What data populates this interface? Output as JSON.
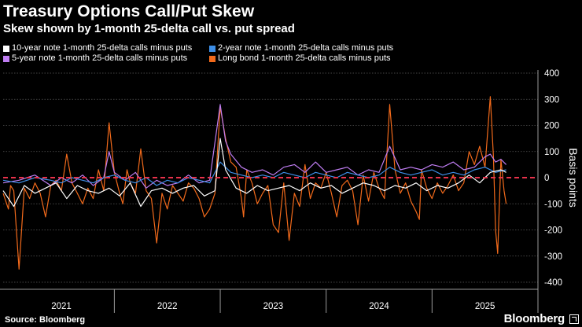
{
  "header": {
    "title": "Treasury Options Call/Put Skew",
    "subtitle": "Skew shown by 1-month 25-delta call vs. put spread"
  },
  "footer": {
    "source": "Source: Bloomberg",
    "brand": "Bloomberg"
  },
  "chart_data": {
    "type": "line",
    "title": "Treasury Options Call/Put Skew",
    "subtitle": "Skew shown by 1-month 25-delta call vs. put spread",
    "ylabel": "Basis points",
    "xlabel": "",
    "ylim": [
      -400,
      400
    ],
    "yticks": [
      400,
      300,
      200,
      100,
      0,
      -100,
      -200,
      -300,
      -400
    ],
    "xlim": [
      2020.45,
      2025.5
    ],
    "xticks": [
      {
        "label": "2021",
        "pos": 2021.0
      },
      {
        "label": "2022",
        "pos": 2022.0
      },
      {
        "label": "2023",
        "pos": 2023.0
      },
      {
        "label": "2024",
        "pos": 2024.0
      },
      {
        "label": "2025",
        "pos": 2025.0
      }
    ],
    "year_dividers": [
      2021.5,
      2022.5,
      2023.5,
      2024.5
    ],
    "zero_line": {
      "y": 0,
      "color": "#e8324b",
      "style": "dashed"
    },
    "legend": [
      {
        "label": "10-year note 1-month 25-delta calls minus puts",
        "color": "#ffffff"
      },
      {
        "label": "2-year note 1-month 25-delta calls minus puts",
        "color": "#3d8ee6"
      },
      {
        "label": "5-year note 1-month 25-delta calls minus puts",
        "color": "#bf7df2"
      },
      {
        "label": "Long bond 1-month 25-delta calls minus puts",
        "color": "#f26a1b"
      }
    ],
    "series": [
      {
        "name": "Long bond 1-month 25-delta calls minus puts",
        "color": "#f26a1b",
        "x": [
          2020.45,
          2020.5,
          2020.52,
          2020.55,
          2020.6,
          2020.65,
          2020.7,
          2020.75,
          2020.8,
          2020.85,
          2020.9,
          2020.95,
          2021.0,
          2021.05,
          2021.1,
          2021.15,
          2021.2,
          2021.25,
          2021.3,
          2021.35,
          2021.4,
          2021.45,
          2021.5,
          2021.55,
          2021.58,
          2021.62,
          2021.65,
          2021.7,
          2021.75,
          2021.8,
          2021.85,
          2021.9,
          2021.95,
          2022.0,
          2022.05,
          2022.1,
          2022.15,
          2022.2,
          2022.25,
          2022.3,
          2022.35,
          2022.4,
          2022.45,
          2022.5,
          2022.55,
          2022.6,
          2022.65,
          2022.7,
          2022.72,
          2022.75,
          2022.8,
          2022.85,
          2022.9,
          2022.95,
          2023.0,
          2023.05,
          2023.1,
          2023.15,
          2023.2,
          2023.25,
          2023.3,
          2023.35,
          2023.4,
          2023.45,
          2023.5,
          2023.55,
          2023.6,
          2023.65,
          2023.7,
          2023.75,
          2023.8,
          2023.85,
          2023.9,
          2023.95,
          2024.0,
          2024.05,
          2024.1,
          2024.15,
          2024.2,
          2024.25,
          2024.3,
          2024.35,
          2024.38,
          2024.4,
          2024.45,
          2024.5,
          2024.55,
          2024.6,
          2024.65,
          2024.7,
          2024.75,
          2024.8,
          2024.85,
          2024.9,
          2024.95,
          2025.0,
          2025.05,
          2025.08,
          2025.1,
          2025.12,
          2025.15,
          2025.18,
          2025.2
        ],
        "values": [
          -60,
          -120,
          -30,
          -50,
          -350,
          -40,
          -80,
          -20,
          -60,
          -150,
          -30,
          -10,
          -50,
          90,
          -20,
          -60,
          -100,
          -40,
          -80,
          30,
          -50,
          210,
          20,
          -60,
          -100,
          30,
          -20,
          -60,
          110,
          -50,
          -80,
          -250,
          -60,
          -120,
          -30,
          -60,
          -90,
          -20,
          -40,
          -80,
          -150,
          -120,
          -60,
          270,
          150,
          60,
          40,
          -80,
          -150,
          30,
          -20,
          -100,
          -60,
          -30,
          -180,
          -210,
          -20,
          -240,
          -60,
          -110,
          50,
          -80,
          -20,
          -40,
          20,
          -60,
          -150,
          -30,
          -10,
          -50,
          -180,
          10,
          -90,
          20,
          -40,
          -80,
          280,
          30,
          -60,
          -20,
          -90,
          -130,
          -160,
          30,
          -40,
          -80,
          -20,
          -60,
          -30,
          10,
          -50,
          -20,
          100,
          50,
          120,
          40,
          310,
          80,
          -200,
          -290,
          70,
          -50,
          -100
        ]
      },
      {
        "name": "5-year note 1-month 25-delta calls minus puts",
        "color": "#bf7df2",
        "x": [
          2020.45,
          2020.6,
          2020.75,
          2020.9,
          2021.0,
          2021.1,
          2021.2,
          2021.3,
          2021.4,
          2021.45,
          2021.5,
          2021.6,
          2021.7,
          2021.8,
          2021.9,
          2022.0,
          2022.1,
          2022.2,
          2022.3,
          2022.4,
          2022.5,
          2022.55,
          2022.6,
          2022.7,
          2022.8,
          2022.9,
          2023.0,
          2023.1,
          2023.2,
          2023.3,
          2023.4,
          2023.5,
          2023.6,
          2023.7,
          2023.8,
          2023.9,
          2024.0,
          2024.1,
          2024.2,
          2024.3,
          2024.4,
          2024.5,
          2024.6,
          2024.7,
          2024.8,
          2024.9,
          2025.0,
          2025.05,
          2025.1,
          2025.15,
          2025.2
        ],
        "values": [
          -20,
          -10,
          10,
          -30,
          0,
          -20,
          10,
          -30,
          0,
          100,
          20,
          -10,
          20,
          -40,
          -10,
          -30,
          -20,
          10,
          -20,
          -10,
          280,
          140,
          90,
          40,
          20,
          30,
          10,
          40,
          50,
          20,
          60,
          20,
          30,
          40,
          10,
          30,
          20,
          120,
          30,
          40,
          30,
          50,
          40,
          60,
          30,
          40,
          80,
          90,
          60,
          70,
          50
        ]
      },
      {
        "name": "2-year note 1-month 25-delta calls minus puts",
        "color": "#3d8ee6",
        "x": [
          2020.45,
          2020.6,
          2020.75,
          2020.9,
          2021.0,
          2021.1,
          2021.2,
          2021.3,
          2021.4,
          2021.5,
          2021.6,
          2021.7,
          2021.8,
          2021.9,
          2022.0,
          2022.1,
          2022.2,
          2022.3,
          2022.4,
          2022.5,
          2022.55,
          2022.6,
          2022.7,
          2022.8,
          2022.9,
          2023.0,
          2023.1,
          2023.2,
          2023.3,
          2023.4,
          2023.5,
          2023.6,
          2023.7,
          2023.8,
          2023.9,
          2024.0,
          2024.1,
          2024.2,
          2024.3,
          2024.4,
          2024.5,
          2024.6,
          2024.7,
          2024.8,
          2024.9,
          2025.0,
          2025.1,
          2025.2
        ],
        "values": [
          -10,
          -20,
          0,
          -10,
          -20,
          0,
          -10,
          -20,
          0,
          10,
          -10,
          -20,
          0,
          -30,
          -10,
          -20,
          0,
          -10,
          -20,
          60,
          40,
          20,
          10,
          0,
          10,
          0,
          20,
          10,
          0,
          20,
          10,
          0,
          20,
          10,
          0,
          10,
          40,
          20,
          10,
          20,
          30,
          10,
          20,
          10,
          30,
          40,
          20,
          30
        ]
      },
      {
        "name": "10-year note 1-month 25-delta calls minus puts",
        "color": "#ffffff",
        "x": [
          2020.45,
          2020.55,
          2020.65,
          2020.75,
          2020.85,
          2020.95,
          2021.05,
          2021.15,
          2021.25,
          2021.35,
          2021.45,
          2021.55,
          2021.65,
          2021.75,
          2021.85,
          2021.95,
          2022.05,
          2022.15,
          2022.25,
          2022.35,
          2022.45,
          2022.5,
          2022.55,
          2022.65,
          2022.75,
          2022.85,
          2022.95,
          2023.05,
          2023.15,
          2023.25,
          2023.35,
          2023.45,
          2023.55,
          2023.65,
          2023.75,
          2023.85,
          2023.95,
          2024.05,
          2024.15,
          2024.25,
          2024.35,
          2024.45,
          2024.55,
          2024.65,
          2024.75,
          2024.85,
          2024.95,
          2025.05,
          2025.15,
          2025.2
        ],
        "values": [
          -50,
          -110,
          -30,
          -60,
          -40,
          -20,
          -80,
          -30,
          -50,
          -60,
          -40,
          -70,
          -20,
          -110,
          -50,
          -40,
          -60,
          -40,
          -30,
          -70,
          -50,
          150,
          30,
          -40,
          -60,
          -30,
          -50,
          -40,
          -30,
          -50,
          -20,
          -40,
          -30,
          -60,
          -40,
          -20,
          -30,
          -50,
          -30,
          -40,
          -20,
          -50,
          -30,
          -40,
          -20,
          10,
          -20,
          20,
          30,
          20
        ]
      }
    ]
  }
}
